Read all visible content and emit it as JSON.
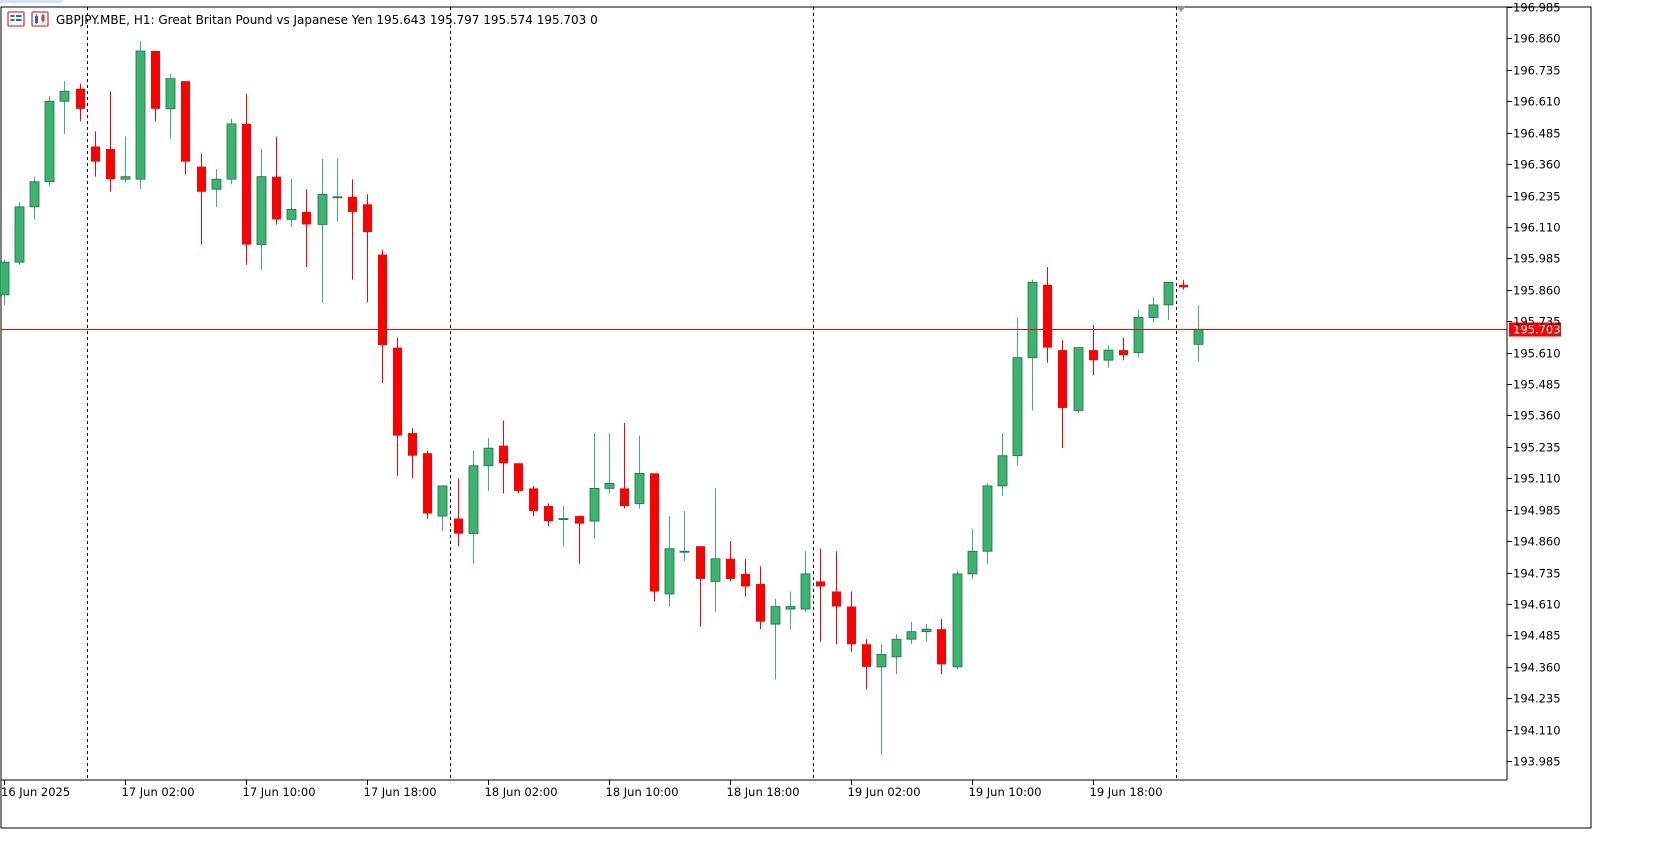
{
  "header": {
    "symbol": "GBPJPY.MBE",
    "timeframe": "H1",
    "description": "Great Britan Pound vs Japanese Yen",
    "ohlc_text": "195.643 195.797 195.574 195.703",
    "spread": "0",
    "icons": [
      "chart-menu-icon",
      "chart-type-icon"
    ]
  },
  "colors": {
    "background": "#ffffff",
    "bull": "#3cb371",
    "bear": "#ff0000",
    "price_line": "#ff0000",
    "separator": "#000000",
    "text": "#000000"
  },
  "chart_data": {
    "type": "candlestick",
    "instrument": "GBPJPY.MBE",
    "timeframe": "H1",
    "ylim": [
      193.91,
      196.985
    ],
    "yticks": [
      "196.985",
      "196.860",
      "196.735",
      "196.610",
      "196.485",
      "196.360",
      "196.235",
      "196.110",
      "195.985",
      "195.860",
      "195.735",
      "195.610",
      "195.485",
      "195.360",
      "195.235",
      "195.110",
      "194.985",
      "194.860",
      "194.735",
      "194.610",
      "194.485",
      "194.360",
      "194.235",
      "194.110",
      "193.985"
    ],
    "current_price": "195.703",
    "xticks": [
      {
        "label": "16 Jun 2025",
        "index": 0
      },
      {
        "label": "17 Jun 02:00",
        "index": 8
      },
      {
        "label": "17 Jun 10:00",
        "index": 16
      },
      {
        "label": "17 Jun 18:00",
        "index": 24
      },
      {
        "label": "18 Jun 02:00",
        "index": 32
      },
      {
        "label": "18 Jun 10:00",
        "index": 40
      },
      {
        "label": "18 Jun 18:00",
        "index": 48
      },
      {
        "label": "19 Jun 02:00",
        "index": 56
      },
      {
        "label": "19 Jun 10:00",
        "index": 64
      },
      {
        "label": "19 Jun 18:00",
        "index": 72
      }
    ],
    "day_separators": [
      5.5,
      29.5,
      53.5,
      77.5
    ],
    "candles": [
      [
        195.84,
        195.98,
        195.8,
        195.97
      ],
      [
        195.97,
        196.21,
        195.96,
        196.19
      ],
      [
        196.19,
        196.31,
        196.14,
        196.29
      ],
      [
        196.29,
        196.63,
        196.27,
        196.61
      ],
      [
        196.61,
        196.69,
        196.48,
        196.65
      ],
      [
        196.66,
        196.68,
        196.53,
        196.58
      ],
      [
        196.43,
        196.49,
        196.31,
        196.37
      ],
      [
        196.42,
        196.65,
        196.25,
        196.3
      ],
      [
        196.3,
        196.47,
        196.29,
        196.31
      ],
      [
        196.3,
        196.85,
        196.26,
        196.81
      ],
      [
        196.81,
        196.81,
        196.53,
        196.58
      ],
      [
        196.58,
        196.72,
        196.46,
        196.7
      ],
      [
        196.69,
        196.69,
        196.32,
        196.37
      ],
      [
        196.35,
        196.4,
        196.04,
        196.25
      ],
      [
        196.26,
        196.34,
        196.19,
        196.3
      ],
      [
        196.3,
        196.54,
        196.28,
        196.52
      ],
      [
        196.52,
        196.64,
        195.96,
        196.04
      ],
      [
        196.04,
        196.42,
        195.94,
        196.31
      ],
      [
        196.31,
        196.47,
        196.12,
        196.14
      ],
      [
        196.14,
        196.3,
        196.11,
        196.18
      ],
      [
        196.17,
        196.26,
        195.95,
        196.12
      ],
      [
        196.12,
        196.38,
        195.81,
        196.24
      ],
      [
        196.23,
        196.38,
        196.13,
        196.23
      ],
      [
        196.23,
        196.3,
        195.9,
        196.17
      ],
      [
        196.2,
        196.24,
        195.81,
        196.09
      ],
      [
        196.0,
        196.02,
        195.49,
        195.64
      ],
      [
        195.63,
        195.67,
        195.12,
        195.28
      ],
      [
        195.29,
        195.31,
        195.11,
        195.2
      ],
      [
        195.21,
        195.22,
        194.95,
        194.97
      ],
      [
        194.96,
        195.08,
        194.9,
        195.08
      ],
      [
        194.95,
        195.11,
        194.84,
        194.89
      ],
      [
        194.89,
        195.22,
        194.77,
        195.16
      ],
      [
        195.16,
        195.27,
        195.06,
        195.23
      ],
      [
        195.24,
        195.34,
        195.05,
        195.17
      ],
      [
        195.17,
        195.17,
        195.05,
        195.06
      ],
      [
        195.07,
        195.08,
        194.96,
        194.98
      ],
      [
        195.0,
        195.01,
        194.92,
        194.94
      ],
      [
        194.95,
        195.0,
        194.84,
        194.95
      ],
      [
        194.96,
        194.96,
        194.77,
        194.93
      ],
      [
        194.94,
        195.29,
        194.87,
        195.07
      ],
      [
        195.07,
        195.29,
        195.05,
        195.09
      ],
      [
        195.07,
        195.33,
        194.99,
        195.0
      ],
      [
        195.01,
        195.28,
        194.99,
        195.13
      ],
      [
        195.13,
        195.13,
        194.62,
        194.66
      ],
      [
        194.65,
        194.96,
        194.6,
        194.83
      ],
      [
        194.82,
        194.98,
        194.78,
        194.82
      ],
      [
        194.84,
        194.84,
        194.52,
        194.71
      ],
      [
        194.7,
        195.07,
        194.58,
        194.79
      ],
      [
        194.79,
        194.86,
        194.7,
        194.71
      ],
      [
        194.73,
        194.79,
        194.64,
        194.68
      ],
      [
        194.69,
        194.76,
        194.51,
        194.54
      ],
      [
        194.53,
        194.63,
        194.31,
        194.6
      ],
      [
        194.59,
        194.66,
        194.51,
        194.6
      ],
      [
        194.59,
        194.82,
        194.58,
        194.73
      ],
      [
        194.7,
        194.83,
        194.46,
        194.68
      ],
      [
        194.66,
        194.82,
        194.45,
        194.6
      ],
      [
        194.6,
        194.66,
        194.42,
        194.45
      ],
      [
        194.45,
        194.47,
        194.27,
        194.36
      ],
      [
        194.36,
        194.45,
        194.01,
        194.41
      ],
      [
        194.4,
        194.49,
        194.33,
        194.47
      ],
      [
        194.47,
        194.54,
        194.45,
        194.5
      ],
      [
        194.5,
        194.53,
        194.46,
        194.51
      ],
      [
        194.51,
        194.55,
        194.33,
        194.37
      ],
      [
        194.36,
        194.74,
        194.35,
        194.73
      ],
      [
        194.73,
        194.91,
        194.71,
        194.82
      ],
      [
        194.82,
        195.09,
        194.77,
        195.08
      ],
      [
        195.08,
        195.29,
        195.04,
        195.2
      ],
      [
        195.2,
        195.75,
        195.16,
        195.59
      ],
      [
        195.59,
        195.9,
        195.38,
        195.89
      ],
      [
        195.88,
        195.95,
        195.57,
        195.63
      ],
      [
        195.62,
        195.66,
        195.23,
        195.39
      ],
      [
        195.38,
        195.62,
        195.37,
        195.63
      ],
      [
        195.62,
        195.72,
        195.52,
        195.58
      ],
      [
        195.58,
        195.64,
        195.55,
        195.62
      ],
      [
        195.62,
        195.67,
        195.58,
        195.6
      ],
      [
        195.61,
        195.78,
        195.59,
        195.75
      ],
      [
        195.75,
        195.83,
        195.73,
        195.8
      ],
      [
        195.8,
        195.89,
        195.74,
        195.89
      ],
      [
        195.88,
        195.9,
        195.86,
        195.87
      ],
      [
        195.643,
        195.797,
        195.574,
        195.703
      ]
    ]
  }
}
